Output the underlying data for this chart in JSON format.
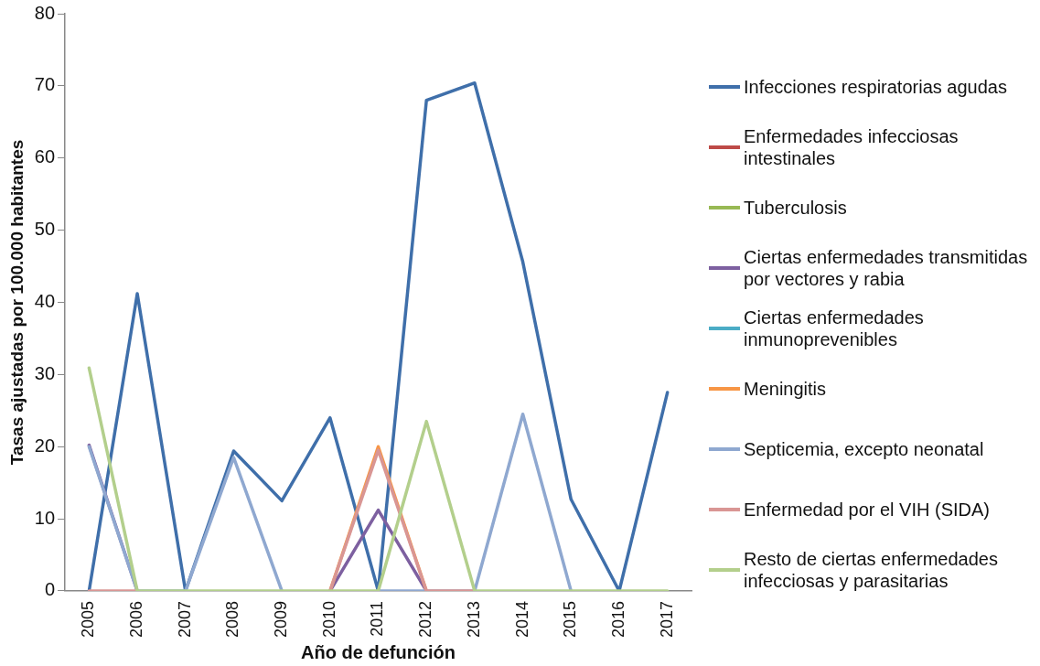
{
  "chart_data": {
    "type": "line",
    "xlabel": "Año de defunción",
    "ylabel": "Tasas ajustadas por 100.000 habitantes",
    "categories": [
      "2005",
      "2006",
      "2007",
      "2008",
      "2009",
      "2010",
      "2011",
      "2012",
      "2013",
      "2014",
      "2015",
      "2016",
      "2017"
    ],
    "ylim": [
      0,
      80
    ],
    "yticks": [
      0,
      10,
      20,
      30,
      40,
      50,
      60,
      70,
      80
    ],
    "grid": false,
    "legend": "right",
    "marker": "none",
    "line_style": "solid",
    "series": [
      {
        "name": "Infecciones respiratorias agudas",
        "color": "#3f6faa",
        "values": [
          0,
          41.2,
          0,
          19.4,
          12.5,
          24,
          0,
          68,
          70.4,
          45.6,
          12.7,
          0,
          27.5
        ]
      },
      {
        "name": "Enfermedades infecciosas intestinales",
        "color": "#be4b48",
        "values": [
          null,
          null,
          null,
          null,
          null,
          null,
          null,
          null,
          null,
          null,
          null,
          null,
          null
        ]
      },
      {
        "name": "Tuberculosis",
        "color": "#98b954",
        "values": [
          null,
          null,
          null,
          null,
          null,
          null,
          null,
          null,
          null,
          null,
          null,
          null,
          null
        ]
      },
      {
        "name": "Ciertas enfermedades transmitidas por vectores y rabia",
        "color": "#7d60a0",
        "values": [
          20.2,
          0,
          null,
          null,
          null,
          0,
          11.2,
          0,
          null,
          null,
          null,
          null,
          null
        ]
      },
      {
        "name": "Ciertas enfermedades inmunoprevenibles",
        "color": "#4bacc6",
        "values": [
          null,
          null,
          null,
          null,
          null,
          null,
          null,
          null,
          null,
          null,
          null,
          null,
          null
        ]
      },
      {
        "name": "Meningitis",
        "color": "#f79646",
        "values": [
          null,
          null,
          null,
          null,
          null,
          0,
          20,
          0,
          null,
          null,
          null,
          null,
          null
        ]
      },
      {
        "name": "Septicemia, excepto neonatal",
        "color": "#8fa8d0",
        "values": [
          20,
          0,
          0,
          18.5,
          0,
          null,
          0,
          0,
          0,
          24.5,
          0,
          null,
          null
        ]
      },
      {
        "name": "Enfermedad por el VIH (SIDA)",
        "color": "#d99694",
        "values": [
          0,
          0,
          null,
          null,
          null,
          0,
          19.5,
          0,
          0,
          null,
          null,
          null,
          null
        ]
      },
      {
        "name": "Resto de ciertas enfermedades infecciosas y parasitarias",
        "color": "#b3cf8c",
        "values": [
          30.9,
          0,
          0,
          0,
          0,
          0,
          0,
          23.5,
          0,
          0,
          0,
          0,
          0
        ]
      }
    ]
  }
}
